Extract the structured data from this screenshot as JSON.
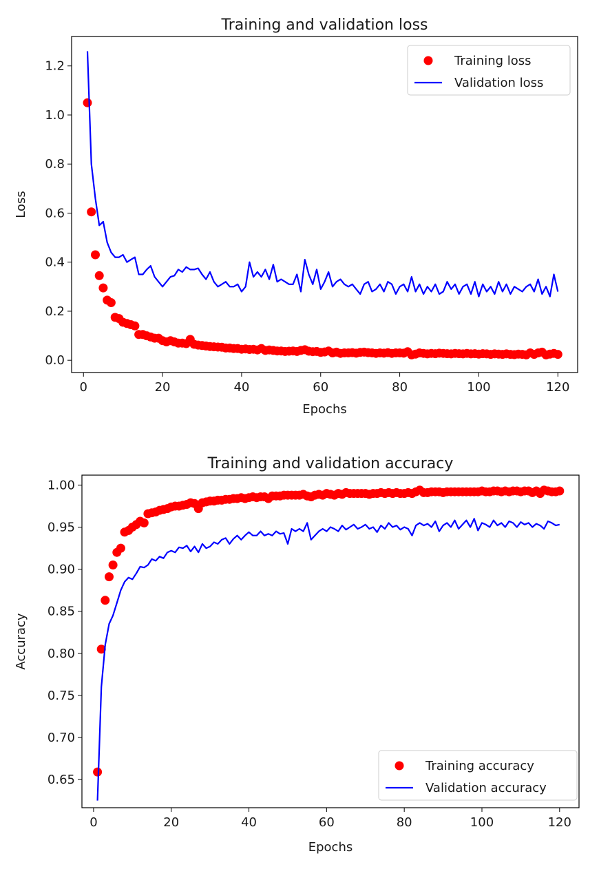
{
  "chart_data": [
    {
      "type": "line",
      "title": "Training and validation loss",
      "xlabel": "Epochs",
      "ylabel": "Loss",
      "xlim": [
        -3.0,
        125.0
      ],
      "ylim": [
        -0.05,
        1.32
      ],
      "xticks": [
        0,
        20,
        40,
        60,
        80,
        100,
        120
      ],
      "xtick_labels": [
        "0",
        "20",
        "40",
        "60",
        "80",
        "100",
        "120"
      ],
      "yticks": [
        0.0,
        0.2,
        0.4,
        0.6,
        0.8,
        1.0,
        1.2
      ],
      "ytick_labels": [
        "0.0",
        "0.2",
        "0.4",
        "0.6",
        "0.8",
        "1.0",
        "1.2"
      ],
      "legend": {
        "position": "top-right"
      },
      "grid": false,
      "series": [
        {
          "name": "Training loss",
          "style": "scatter",
          "color": "#ff0000",
          "x": [
            1,
            2,
            3,
            4,
            5,
            6,
            7,
            8,
            9,
            10,
            11,
            12,
            13,
            14,
            15,
            16,
            17,
            18,
            19,
            20,
            21,
            22,
            23,
            24,
            25,
            26,
            27,
            28,
            29,
            30,
            31,
            32,
            33,
            34,
            35,
            36,
            37,
            38,
            39,
            40,
            41,
            42,
            43,
            44,
            45,
            46,
            47,
            48,
            49,
            50,
            51,
            52,
            53,
            54,
            55,
            56,
            57,
            58,
            59,
            60,
            61,
            62,
            63,
            64,
            65,
            66,
            67,
            68,
            69,
            70,
            71,
            72,
            73,
            74,
            75,
            76,
            77,
            78,
            79,
            80,
            81,
            82,
            83,
            84,
            85,
            86,
            87,
            88,
            89,
            90,
            91,
            92,
            93,
            94,
            95,
            96,
            97,
            98,
            99,
            100,
            101,
            102,
            103,
            104,
            105,
            106,
            107,
            108,
            109,
            110,
            111,
            112,
            113,
            114,
            115,
            116,
            117,
            118,
            119,
            120
          ],
          "y": [
            1.05,
            0.605,
            0.43,
            0.345,
            0.295,
            0.245,
            0.235,
            0.175,
            0.17,
            0.155,
            0.15,
            0.145,
            0.14,
            0.105,
            0.105,
            0.1,
            0.095,
            0.09,
            0.09,
            0.08,
            0.075,
            0.08,
            0.075,
            0.07,
            0.07,
            0.068,
            0.085,
            0.065,
            0.062,
            0.06,
            0.058,
            0.056,
            0.055,
            0.054,
            0.053,
            0.05,
            0.05,
            0.048,
            0.048,
            0.045,
            0.046,
            0.044,
            0.045,
            0.042,
            0.048,
            0.04,
            0.042,
            0.04,
            0.038,
            0.038,
            0.036,
            0.037,
            0.038,
            0.036,
            0.04,
            0.043,
            0.037,
            0.035,
            0.036,
            0.032,
            0.034,
            0.038,
            0.03,
            0.033,
            0.028,
            0.03,
            0.03,
            0.031,
            0.029,
            0.032,
            0.033,
            0.031,
            0.03,
            0.028,
            0.03,
            0.029,
            0.031,
            0.028,
            0.03,
            0.03,
            0.029,
            0.035,
            0.022,
            0.025,
            0.03,
            0.028,
            0.026,
            0.028,
            0.027,
            0.029,
            0.028,
            0.027,
            0.026,
            0.028,
            0.027,
            0.026,
            0.028,
            0.026,
            0.027,
            0.025,
            0.027,
            0.026,
            0.024,
            0.026,
            0.025,
            0.024,
            0.026,
            0.024,
            0.023,
            0.025,
            0.024,
            0.022,
            0.03,
            0.024,
            0.03,
            0.033,
            0.022,
            0.025,
            0.028,
            0.024
          ]
        },
        {
          "name": "Validation loss",
          "style": "line",
          "color": "#0000ff",
          "x": [
            1,
            2,
            3,
            4,
            5,
            6,
            7,
            8,
            9,
            10,
            11,
            12,
            13,
            14,
            15,
            16,
            17,
            18,
            19,
            20,
            21,
            22,
            23,
            24,
            25,
            26,
            27,
            28,
            29,
            30,
            31,
            32,
            33,
            34,
            35,
            36,
            37,
            38,
            39,
            40,
            41,
            42,
            43,
            44,
            45,
            46,
            47,
            48,
            49,
            50,
            51,
            52,
            53,
            54,
            55,
            56,
            57,
            58,
            59,
            60,
            61,
            62,
            63,
            64,
            65,
            66,
            67,
            68,
            69,
            70,
            71,
            72,
            73,
            74,
            75,
            76,
            77,
            78,
            79,
            80,
            81,
            82,
            83,
            84,
            85,
            86,
            87,
            88,
            89,
            90,
            91,
            92,
            93,
            94,
            95,
            96,
            97,
            98,
            99,
            100,
            101,
            102,
            103,
            104,
            105,
            106,
            107,
            108,
            109,
            110,
            111,
            112,
            113,
            114,
            115,
            116,
            117,
            118,
            119,
            120
          ],
          "y": [
            1.26,
            0.8,
            0.66,
            0.55,
            0.565,
            0.48,
            0.44,
            0.42,
            0.42,
            0.43,
            0.4,
            0.41,
            0.42,
            0.35,
            0.35,
            0.37,
            0.385,
            0.34,
            0.32,
            0.3,
            0.32,
            0.34,
            0.345,
            0.37,
            0.36,
            0.38,
            0.37,
            0.37,
            0.375,
            0.35,
            0.33,
            0.36,
            0.32,
            0.3,
            0.31,
            0.32,
            0.3,
            0.3,
            0.31,
            0.28,
            0.3,
            0.4,
            0.34,
            0.36,
            0.34,
            0.37,
            0.33,
            0.39,
            0.32,
            0.33,
            0.32,
            0.31,
            0.31,
            0.35,
            0.28,
            0.41,
            0.35,
            0.31,
            0.37,
            0.29,
            0.32,
            0.36,
            0.3,
            0.32,
            0.33,
            0.31,
            0.3,
            0.31,
            0.29,
            0.27,
            0.31,
            0.32,
            0.28,
            0.29,
            0.31,
            0.28,
            0.32,
            0.31,
            0.27,
            0.3,
            0.31,
            0.28,
            0.34,
            0.28,
            0.31,
            0.27,
            0.3,
            0.28,
            0.31,
            0.27,
            0.28,
            0.32,
            0.29,
            0.31,
            0.27,
            0.3,
            0.31,
            0.27,
            0.32,
            0.26,
            0.31,
            0.28,
            0.3,
            0.27,
            0.32,
            0.28,
            0.31,
            0.27,
            0.3,
            0.29,
            0.28,
            0.3,
            0.31,
            0.28,
            0.33,
            0.27,
            0.3,
            0.26,
            0.35,
            0.28
          ]
        }
      ]
    },
    {
      "type": "line",
      "title": "Training and validation accuracy",
      "xlabel": "Epochs",
      "ylabel": "Accuracy",
      "xlim": [
        -3.0,
        125.0
      ],
      "ylim": [
        0.6165,
        1.0118
      ],
      "xticks": [
        0,
        20,
        40,
        60,
        80,
        100,
        120
      ],
      "xtick_labels": [
        "0",
        "20",
        "40",
        "60",
        "80",
        "100",
        "120"
      ],
      "yticks": [
        0.65,
        0.7,
        0.75,
        0.8,
        0.85,
        0.9,
        0.95,
        1.0
      ],
      "ytick_labels": [
        "0.65",
        "0.70",
        "0.75",
        "0.80",
        "0.85",
        "0.90",
        "0.95",
        "1.00"
      ],
      "legend": {
        "position": "bottom-right"
      },
      "grid": false,
      "series": [
        {
          "name": "Training accuracy",
          "style": "scatter",
          "color": "#ff0000",
          "x": [
            1,
            2,
            3,
            4,
            5,
            6,
            7,
            8,
            9,
            10,
            11,
            12,
            13,
            14,
            15,
            16,
            17,
            18,
            19,
            20,
            21,
            22,
            23,
            24,
            25,
            26,
            27,
            28,
            29,
            30,
            31,
            32,
            33,
            34,
            35,
            36,
            37,
            38,
            39,
            40,
            41,
            42,
            43,
            44,
            45,
            46,
            47,
            48,
            49,
            50,
            51,
            52,
            53,
            54,
            55,
            56,
            57,
            58,
            59,
            60,
            61,
            62,
            63,
            64,
            65,
            66,
            67,
            68,
            69,
            70,
            71,
            72,
            73,
            74,
            75,
            76,
            77,
            78,
            79,
            80,
            81,
            82,
            83,
            84,
            85,
            86,
            87,
            88,
            89,
            90,
            91,
            92,
            93,
            94,
            95,
            96,
            97,
            98,
            99,
            100,
            101,
            102,
            103,
            104,
            105,
            106,
            107,
            108,
            109,
            110,
            111,
            112,
            113,
            114,
            115,
            116,
            117,
            118,
            119,
            120
          ],
          "y": [
            0.659,
            0.805,
            0.863,
            0.891,
            0.905,
            0.92,
            0.925,
            0.944,
            0.946,
            0.95,
            0.953,
            0.957,
            0.955,
            0.966,
            0.967,
            0.968,
            0.97,
            0.971,
            0.972,
            0.974,
            0.975,
            0.975,
            0.976,
            0.977,
            0.979,
            0.978,
            0.972,
            0.979,
            0.98,
            0.981,
            0.981,
            0.982,
            0.982,
            0.983,
            0.983,
            0.984,
            0.984,
            0.985,
            0.984,
            0.985,
            0.986,
            0.985,
            0.986,
            0.986,
            0.984,
            0.987,
            0.987,
            0.987,
            0.988,
            0.988,
            0.988,
            0.988,
            0.988,
            0.989,
            0.987,
            0.986,
            0.988,
            0.989,
            0.988,
            0.99,
            0.989,
            0.988,
            0.99,
            0.989,
            0.991,
            0.99,
            0.99,
            0.99,
            0.99,
            0.99,
            0.989,
            0.99,
            0.99,
            0.991,
            0.99,
            0.991,
            0.99,
            0.991,
            0.99,
            0.99,
            0.991,
            0.99,
            0.992,
            0.994,
            0.991,
            0.991,
            0.992,
            0.992,
            0.992,
            0.991,
            0.992,
            0.992,
            0.992,
            0.992,
            0.992,
            0.992,
            0.992,
            0.992,
            0.992,
            0.993,
            0.992,
            0.992,
            0.993,
            0.993,
            0.992,
            0.993,
            0.992,
            0.993,
            0.993,
            0.992,
            0.993,
            0.993,
            0.991,
            0.993,
            0.99,
            0.994,
            0.993,
            0.992,
            0.992,
            0.993
          ]
        },
        {
          "name": "Validation accuracy",
          "style": "line",
          "color": "#0000ff",
          "x": [
            1,
            2,
            3,
            4,
            5,
            6,
            7,
            8,
            9,
            10,
            11,
            12,
            13,
            14,
            15,
            16,
            17,
            18,
            19,
            20,
            21,
            22,
            23,
            24,
            25,
            26,
            27,
            28,
            29,
            30,
            31,
            32,
            33,
            34,
            35,
            36,
            37,
            38,
            39,
            40,
            41,
            42,
            43,
            44,
            45,
            46,
            47,
            48,
            49,
            50,
            51,
            52,
            53,
            54,
            55,
            56,
            57,
            58,
            59,
            60,
            61,
            62,
            63,
            64,
            65,
            66,
            67,
            68,
            69,
            70,
            71,
            72,
            73,
            74,
            75,
            76,
            77,
            78,
            79,
            80,
            81,
            82,
            83,
            84,
            85,
            86,
            87,
            88,
            89,
            90,
            91,
            92,
            93,
            94,
            95,
            96,
            97,
            98,
            99,
            100,
            101,
            102,
            103,
            104,
            105,
            106,
            107,
            108,
            109,
            110,
            111,
            112,
            113,
            114,
            115,
            116,
            117,
            118,
            119,
            120
          ],
          "y": [
            0.625,
            0.76,
            0.81,
            0.835,
            0.845,
            0.86,
            0.875,
            0.885,
            0.89,
            0.888,
            0.895,
            0.903,
            0.902,
            0.905,
            0.912,
            0.91,
            0.915,
            0.913,
            0.92,
            0.922,
            0.92,
            0.926,
            0.925,
            0.928,
            0.921,
            0.927,
            0.92,
            0.93,
            0.925,
            0.927,
            0.932,
            0.93,
            0.935,
            0.937,
            0.93,
            0.936,
            0.94,
            0.935,
            0.94,
            0.944,
            0.94,
            0.94,
            0.945,
            0.94,
            0.942,
            0.94,
            0.945,
            0.942,
            0.943,
            0.93,
            0.948,
            0.945,
            0.948,
            0.945,
            0.955,
            0.935,
            0.94,
            0.945,
            0.948,
            0.945,
            0.95,
            0.948,
            0.945,
            0.952,
            0.947,
            0.95,
            0.953,
            0.948,
            0.95,
            0.953,
            0.948,
            0.95,
            0.944,
            0.952,
            0.948,
            0.955,
            0.95,
            0.952,
            0.947,
            0.95,
            0.948,
            0.94,
            0.952,
            0.955,
            0.952,
            0.954,
            0.95,
            0.957,
            0.945,
            0.952,
            0.955,
            0.95,
            0.958,
            0.948,
            0.953,
            0.958,
            0.95,
            0.96,
            0.946,
            0.955,
            0.953,
            0.95,
            0.958,
            0.952,
            0.955,
            0.95,
            0.957,
            0.955,
            0.95,
            0.956,
            0.953,
            0.955,
            0.95,
            0.954,
            0.952,
            0.948,
            0.957,
            0.955,
            0.952,
            0.953
          ]
        }
      ]
    }
  ]
}
